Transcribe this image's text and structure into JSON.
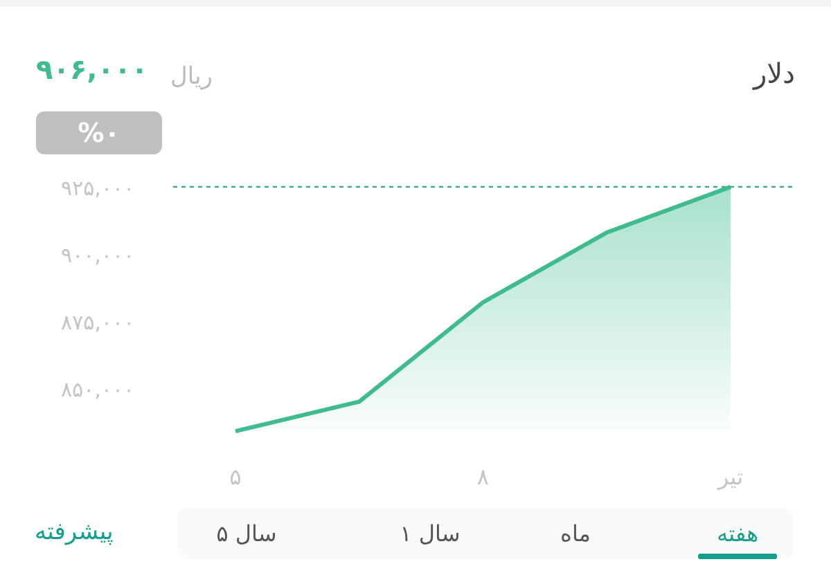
{
  "header": {
    "title": "دلار",
    "price": "۹۰۶,۰۰۰",
    "unit": "ریال",
    "change": "%۰"
  },
  "colors": {
    "accent": "#3fbb8e",
    "tab_active": "#159e8c",
    "badge": "#bfbfbf"
  },
  "chart_data": {
    "type": "area",
    "x_labels": [
      {
        "index": 0,
        "label": "۵"
      },
      {
        "index": 2,
        "label": "۸"
      },
      {
        "index": 4,
        "label": "تیر"
      }
    ],
    "values": [
      834000,
      845000,
      882000,
      908000,
      925000
    ],
    "y_ticks": [
      {
        "value": 925000,
        "label": "۹۲۵,۰۰۰"
      },
      {
        "value": 900000,
        "label": "۹۰۰,۰۰۰"
      },
      {
        "value": 875000,
        "label": "۸۷۵,۰۰۰"
      },
      {
        "value": 850000,
        "label": "۸۵۰,۰۰۰"
      }
    ],
    "reference_line": 925000,
    "grid": false
  },
  "tabs": [
    {
      "label": "هفته",
      "active": true
    },
    {
      "label": "ماه",
      "active": false
    },
    {
      "label": "۱ سال",
      "active": false
    },
    {
      "label": "۵ سال",
      "active": false
    }
  ],
  "advanced_label": "پیشرفته"
}
